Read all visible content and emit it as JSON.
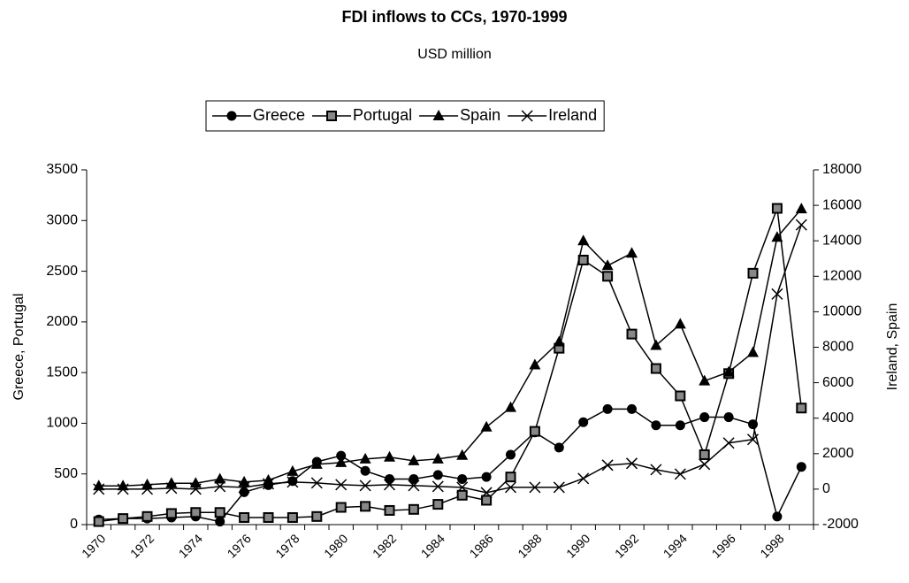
{
  "chart_data": {
    "type": "line",
    "title": "FDI inflows to CCs, 1970-1999",
    "subtitle": "USD million",
    "ylabel": "Greece, Portugal",
    "y2label": "Ireland, Spain",
    "categories": [
      "1970",
      null,
      "1972",
      null,
      "1974",
      null,
      "1976",
      null,
      "1978",
      null,
      "1980",
      null,
      "1982",
      null,
      "1984",
      null,
      "1986",
      null,
      "1988",
      null,
      "1990",
      null,
      "1992",
      null,
      "1994",
      null,
      "1996",
      null,
      "1998",
      null
    ],
    "series": [
      {
        "name": "Greece",
        "color": "#000000",
        "marker": "circle",
        "values": [
          50,
          60,
          60,
          70,
          80,
          30,
          320,
          390,
          430,
          620,
          680,
          530,
          450,
          450,
          490,
          450,
          470,
          690,
          910,
          760,
          1010,
          1140,
          1140,
          980,
          980,
          1060,
          1060,
          990,
          80,
          570
        ]
      },
      {
        "name": "Portugal",
        "color": "#000000",
        "marker": "square",
        "values": [
          30,
          60,
          80,
          110,
          120,
          120,
          70,
          70,
          70,
          80,
          170,
          180,
          140,
          150,
          200,
          290,
          240,
          470,
          920,
          1740,
          2610,
          2450,
          1880,
          1540,
          1270,
          690,
          1490,
          2480,
          3120,
          1150
        ]
      },
      {
        "name": "Spain",
        "color": "#000000",
        "marker": "triangle",
        "axis": "y2",
        "values": [
          180,
          180,
          250,
          330,
          330,
          570,
          400,
          500,
          1000,
          1400,
          1500,
          1700,
          1800,
          1600,
          1700,
          1900,
          3500,
          4600,
          7000,
          8300,
          14000,
          12600,
          13300,
          8100,
          9300,
          6100,
          6600,
          7700,
          14200,
          15800
        ]
      },
      {
        "name": "Ireland",
        "color": "#000000",
        "marker": "x",
        "axis": "y2",
        "values": [
          0,
          0,
          0,
          50,
          0,
          150,
          100,
          300,
          400,
          350,
          250,
          200,
          250,
          200,
          150,
          100,
          -200,
          100,
          100,
          100,
          600,
          1350,
          1450,
          1100,
          850,
          1400,
          2600,
          2800,
          11000,
          14900
        ]
      }
    ],
    "ylim": [
      0,
      3500
    ],
    "yticks": [
      0,
      500,
      1000,
      1500,
      2000,
      2500,
      3000,
      3500
    ],
    "y2lim": [
      -2000,
      18000
    ],
    "y2ticks": [
      -2000,
      0,
      2000,
      4000,
      6000,
      8000,
      10000,
      12000,
      14000,
      16000,
      18000
    ],
    "grid": false
  }
}
